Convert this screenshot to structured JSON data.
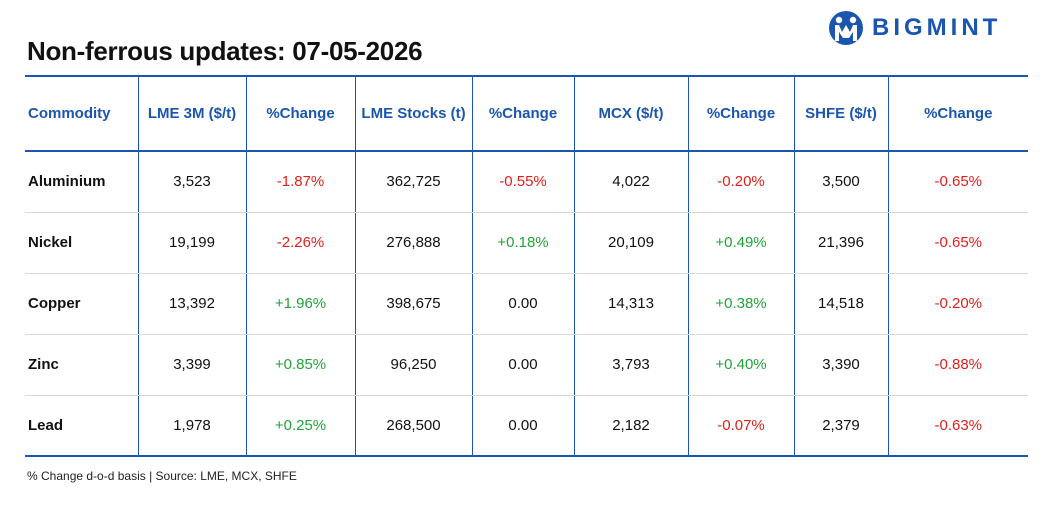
{
  "title": "Non-ferrous updates: 07-05-2026",
  "brand": {
    "name": "BIGMINT",
    "color": "#1a56b0",
    "logo_icon": "bigmint-logo-icon"
  },
  "colors": {
    "negative": "#e0201c",
    "positive": "#23a23a"
  },
  "table": {
    "headers": [
      "Commodity",
      "LME 3M ($/t)",
      "%Change",
      "LME Stocks (t)",
      "%Change",
      "MCX ($/t)",
      "%Change",
      "SHFE ($/t)",
      "%Change"
    ],
    "rows": [
      [
        "Aluminium",
        "3,523",
        "-1.87%",
        "362,725",
        "-0.55%",
        "4,022",
        "-0.20%",
        "3,500",
        "-0.65%"
      ],
      [
        "Nickel",
        "19,199",
        "-2.26%",
        "276,888",
        "+0.18%",
        "20,109",
        "+0.49%",
        "21,396",
        "-0.65%"
      ],
      [
        "Copper",
        "13,392",
        "+1.96%",
        "398,675",
        "0.00",
        "14,313",
        "+0.38%",
        "14,518",
        "-0.20%"
      ],
      [
        "Zinc",
        "3,399",
        "+0.85%",
        "96,250",
        "0.00",
        "3,793",
        "+0.40%",
        "3,390",
        "-0.88%"
      ],
      [
        "Lead",
        "1,978",
        "+0.25%",
        "268,500",
        "0.00",
        "2,182",
        "-0.07%",
        "2,379",
        "-0.63%"
      ]
    ]
  },
  "footer": "% Change d-o-d basis | Source: LME, MCX, SHFE"
}
